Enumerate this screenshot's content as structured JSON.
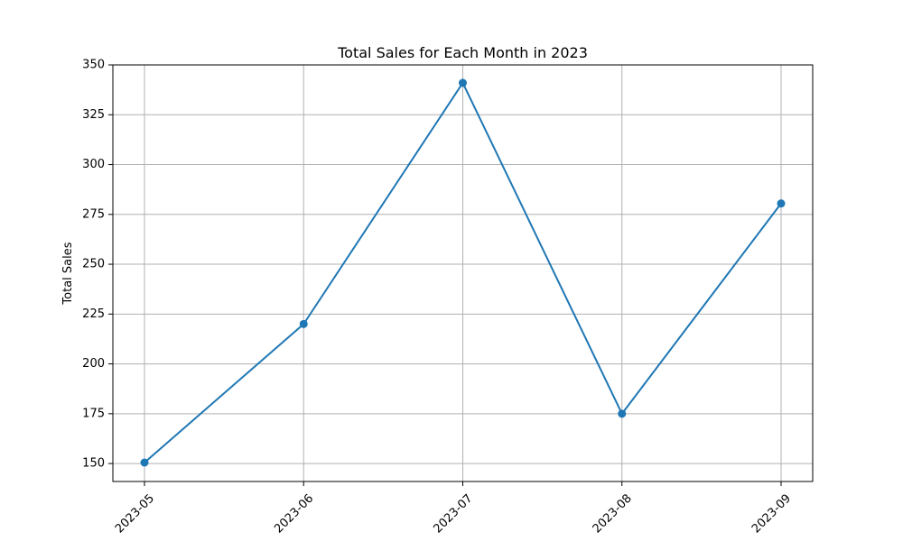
{
  "chart_data": {
    "type": "line",
    "title": "Total Sales for Each Month in 2023",
    "xlabel": "",
    "ylabel": "Total Sales",
    "categories": [
      "2023-05",
      "2023-06",
      "2023-07",
      "2023-08",
      "2023-09"
    ],
    "series": [
      {
        "values": [
          150.5,
          220,
          341,
          175,
          280.5
        ],
        "color": "#1f77b4",
        "marker": "circle"
      }
    ],
    "ylim": [
      141,
      350
    ],
    "yticks": [
      150,
      175,
      200,
      225,
      250,
      275,
      300,
      325,
      350
    ],
    "grid": true
  }
}
